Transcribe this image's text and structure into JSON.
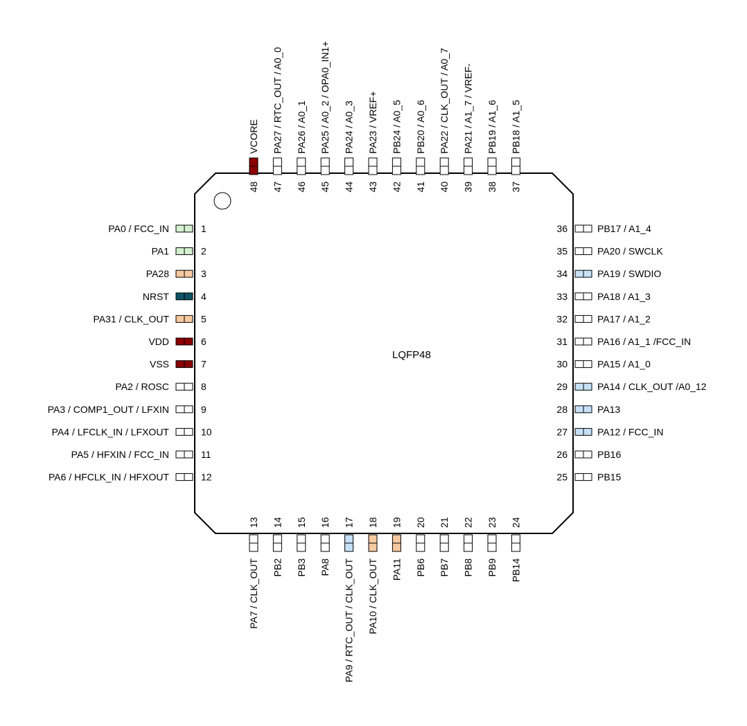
{
  "package": {
    "label": "LQFP48"
  },
  "colors": {
    "none": "#ffffff",
    "green": "#d4f2cf",
    "orange": "#f7c9a1",
    "teal": "#0e5265",
    "darkred": "#8b0000",
    "blue": "#c6e1f7"
  },
  "pins": {
    "left": [
      {
        "num": "1",
        "label": "PA0 / FCC_IN",
        "color": "green"
      },
      {
        "num": "2",
        "label": "PA1",
        "color": "green"
      },
      {
        "num": "3",
        "label": "PA28",
        "color": "orange"
      },
      {
        "num": "4",
        "label": "NRST",
        "color": "teal"
      },
      {
        "num": "5",
        "label": "PA31 / CLK_OUT",
        "color": "orange"
      },
      {
        "num": "6",
        "label": "VDD",
        "color": "darkred"
      },
      {
        "num": "7",
        "label": "VSS",
        "color": "darkred"
      },
      {
        "num": "8",
        "label": "PA2 / ROSC",
        "color": "none"
      },
      {
        "num": "9",
        "label": "PA3 / COMP1_OUT / LFXIN",
        "color": "none"
      },
      {
        "num": "10",
        "label": "PA4 / LFCLK_IN / LFXOUT",
        "color": "none"
      },
      {
        "num": "11",
        "label": "PA5 / HFXIN / FCC_IN",
        "color": "none"
      },
      {
        "num": "12",
        "label": "PA6 / HFCLK_IN / HFXOUT",
        "color": "none"
      }
    ],
    "bottom": [
      {
        "num": "13",
        "label": "PA7 / CLK_OUT",
        "color": "none"
      },
      {
        "num": "14",
        "label": "PB2",
        "color": "none"
      },
      {
        "num": "15",
        "label": "PB3",
        "color": "none"
      },
      {
        "num": "16",
        "label": "PA8",
        "color": "none"
      },
      {
        "num": "17",
        "label": "PA9 / RTC_OUT / CLK_OUT",
        "color": "blue"
      },
      {
        "num": "18",
        "label": "PA10 / CLK_OUT",
        "color": "orange"
      },
      {
        "num": "19",
        "label": "PA11",
        "color": "orange"
      },
      {
        "num": "20",
        "label": "PB6",
        "color": "none"
      },
      {
        "num": "21",
        "label": "PB7",
        "color": "none"
      },
      {
        "num": "22",
        "label": "PB8",
        "color": "none"
      },
      {
        "num": "23",
        "label": "PB9",
        "color": "none"
      },
      {
        "num": "24",
        "label": "PB14",
        "color": "none"
      }
    ],
    "right": [
      {
        "num": "25",
        "label": "PB15",
        "color": "none"
      },
      {
        "num": "26",
        "label": "PB16",
        "color": "none"
      },
      {
        "num": "27",
        "label": "PA12 / FCC_IN",
        "color": "blue"
      },
      {
        "num": "28",
        "label": "PA13",
        "color": "blue"
      },
      {
        "num": "29",
        "label": "PA14 / CLK_OUT /A0_12",
        "color": "blue"
      },
      {
        "num": "30",
        "label": "PA15 / A1_0",
        "color": "none"
      },
      {
        "num": "31",
        "label": "PA16 / A1_1 /FCC_IN",
        "color": "none"
      },
      {
        "num": "32",
        "label": "PA17 / A1_2",
        "color": "none"
      },
      {
        "num": "33",
        "label": "PA18 / A1_3",
        "color": "none"
      },
      {
        "num": "34",
        "label": "PA19 / SWDIO",
        "color": "blue"
      },
      {
        "num": "35",
        "label": "PA20 / SWCLK",
        "color": "none"
      },
      {
        "num": "36",
        "label": "PB17 / A1_4",
        "color": "none"
      }
    ],
    "top": [
      {
        "num": "37",
        "label": "PB18 / A1_5",
        "color": "none"
      },
      {
        "num": "38",
        "label": "PB19 / A1_6",
        "color": "none"
      },
      {
        "num": "39",
        "label": "PA21 / A1_7 / VREF-",
        "color": "none"
      },
      {
        "num": "40",
        "label": "PA22 / CLK_OUT / A0_7",
        "color": "none"
      },
      {
        "num": "41",
        "label": "PB20 / A0_6",
        "color": "none"
      },
      {
        "num": "42",
        "label": "PB24  / A0_5",
        "color": "none"
      },
      {
        "num": "43",
        "label": "PA23 / VREF+",
        "color": "none"
      },
      {
        "num": "44",
        "label": "PA24 / A0_3",
        "color": "none"
      },
      {
        "num": "45",
        "label": "PA25 / A0_2  / OPA0_IN1+",
        "color": "none"
      },
      {
        "num": "46",
        "label": "PA26 / A0_1",
        "color": "none"
      },
      {
        "num": "47",
        "label": "PA27 / RTC_OUT / A0_0",
        "color": "none"
      },
      {
        "num": "48",
        "label": "VCORE",
        "color": "darkred"
      }
    ]
  }
}
